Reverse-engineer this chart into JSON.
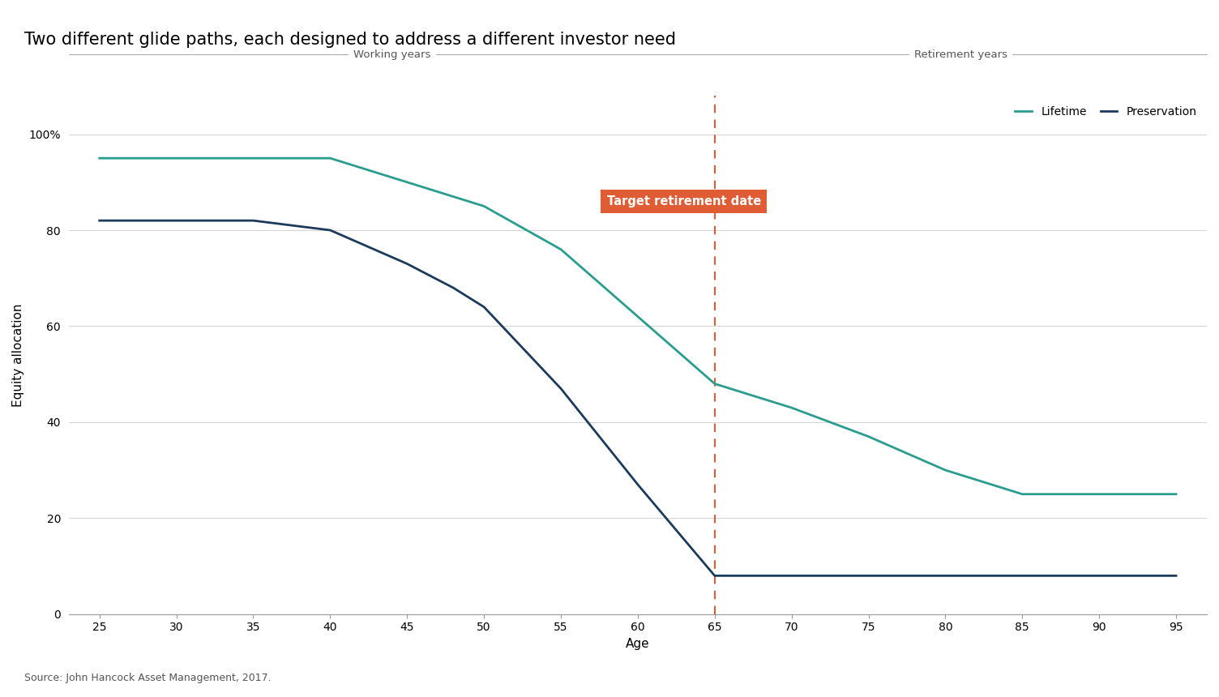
{
  "title": "Two different glide paths, each designed to address a different investor need",
  "xlabel": "Age",
  "ylabel": "Equity allocation",
  "source": "Source: John Hancock Asset Management, 2017.",
  "working_years_label": "Working years",
  "retirement_years_label": "Retirement years",
  "retirement_age_label": "Target retirement date",
  "retirement_age": 65,
  "lifetime_color": "#2a9d8f",
  "preservation_color": "#1b3a5c",
  "annotation_box_color": "#e05c35",
  "annotation_text_color": "#ffffff",
  "dashed_line_color": "#e05c35",
  "grid_color": "#cccccc",
  "background_color": "#ffffff",
  "lifetime_data": {
    "age": [
      25,
      30,
      35,
      40,
      45,
      48,
      50,
      55,
      60,
      65,
      70,
      75,
      80,
      85,
      90,
      95
    ],
    "equity": [
      95,
      95,
      95,
      95,
      90,
      87,
      85,
      76,
      62,
      48,
      43,
      37,
      30,
      25,
      25,
      25
    ]
  },
  "preservation_data": {
    "age": [
      25,
      30,
      35,
      40,
      45,
      48,
      50,
      55,
      60,
      65,
      70,
      75,
      80,
      85,
      90,
      95
    ],
    "equity": [
      82,
      82,
      82,
      80,
      73,
      68,
      64,
      47,
      27,
      8,
      8,
      8,
      8,
      8,
      8,
      8
    ]
  },
  "ylim": [
    0,
    108
  ],
  "yticks": [
    0,
    20,
    40,
    60,
    80,
    100
  ],
  "ytick_labels": [
    "0",
    "20",
    "40",
    "60",
    "80",
    "100%"
  ],
  "xlim": [
    23,
    97
  ],
  "xticks": [
    25,
    30,
    35,
    40,
    45,
    50,
    55,
    60,
    65,
    70,
    75,
    80,
    85,
    90,
    95
  ],
  "title_fontsize": 15,
  "axis_label_fontsize": 11,
  "tick_fontsize": 10,
  "legend_fontsize": 10,
  "source_fontsize": 9,
  "line_width": 2.0,
  "header_line_color": "#aaaaaa",
  "header_text_color": "#555555",
  "header_fontsize": 9.5
}
